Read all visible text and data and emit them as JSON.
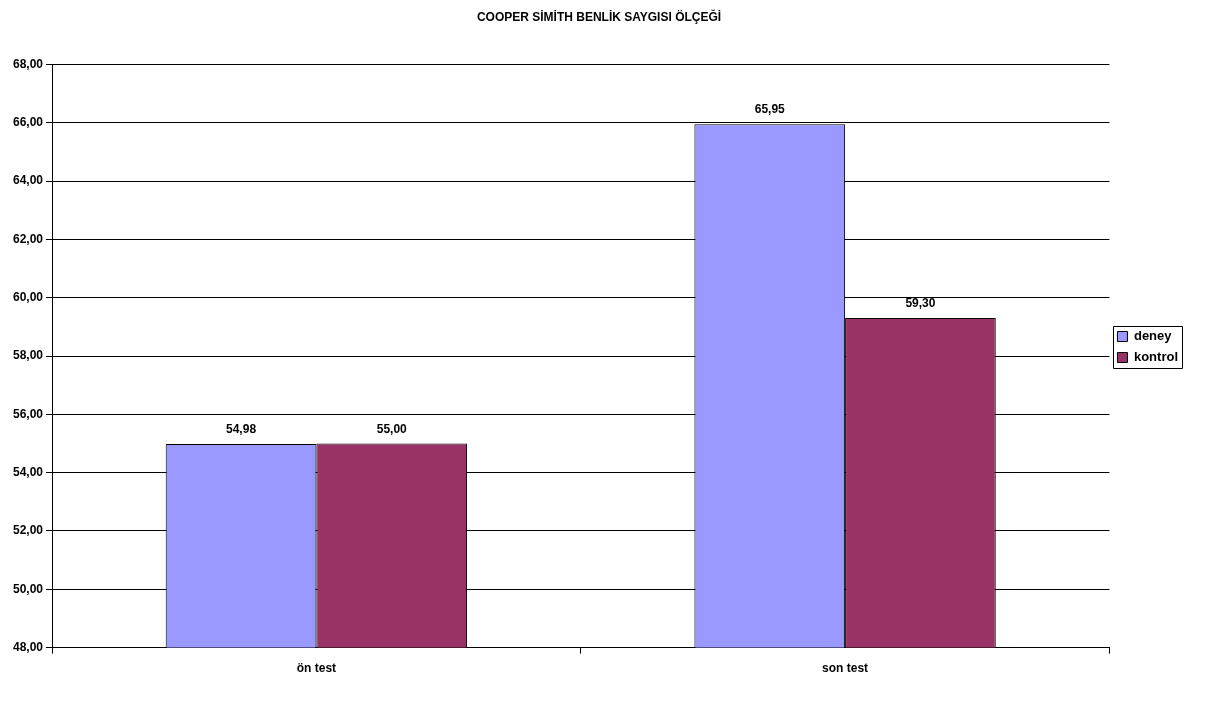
{
  "chart_data": {
    "type": "bar",
    "title": "COOPER SİMİTH BENLİK SAYGISI ÖLÇEĞİ",
    "categories": [
      "ön test",
      "son test"
    ],
    "series": [
      {
        "name": "deney",
        "color": "#9999ff",
        "values": [
          54.98,
          65.95
        ],
        "value_labels": [
          "54,98",
          "65,95"
        ]
      },
      {
        "name": "kontrol",
        "color": "#993366",
        "values": [
          55.0,
          59.3
        ],
        "value_labels": [
          "55,00",
          "59,30"
        ]
      }
    ],
    "ylim": [
      48,
      68
    ],
    "yticks": [
      {
        "value": 48,
        "label": "48,00"
      },
      {
        "value": 50,
        "label": "50,00"
      },
      {
        "value": 52,
        "label": "52,00"
      },
      {
        "value": 54,
        "label": "54,00"
      },
      {
        "value": 56,
        "label": "56,00"
      },
      {
        "value": 58,
        "label": "58,00"
      },
      {
        "value": 60,
        "label": "60,00"
      },
      {
        "value": 62,
        "label": "62,00"
      },
      {
        "value": 64,
        "label": "64,00"
      },
      {
        "value": 66,
        "label": "66,00"
      },
      {
        "value": 68,
        "label": "68,00"
      }
    ],
    "grid": "y",
    "legend": "right"
  }
}
